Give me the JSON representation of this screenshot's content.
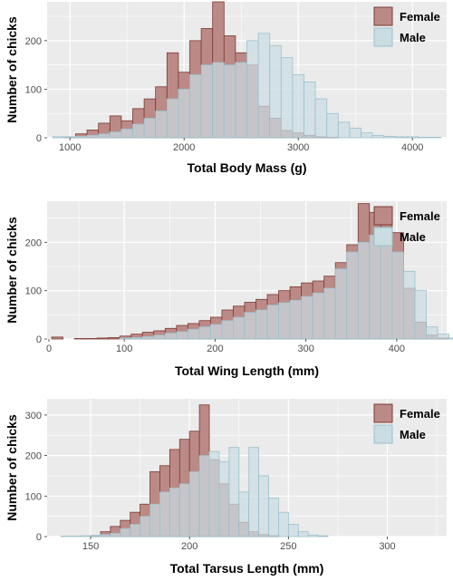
{
  "colors": {
    "panel_bg": "#ebebeb",
    "grid": "#ffffff",
    "female_fill": "#bc8a86",
    "female_stroke": "#7a3a33",
    "male_fill": "#c9dde3",
    "male_stroke": "#9cc0cc"
  },
  "chart_data": [
    {
      "type": "histogram",
      "xlabel": "Total Body Mass (g)",
      "ylabel": "Number of chicks",
      "xlim": [
        800,
        4300
      ],
      "ylim": [
        0,
        280
      ],
      "xticks": [
        1000,
        2000,
        3000,
        4000
      ],
      "yticks": [
        0,
        100,
        200
      ],
      "legend_position": "top-right",
      "bin_start": 850,
      "bin_width": 100,
      "series": [
        {
          "name": "Female",
          "values": [
            0,
            2,
            8,
            16,
            30,
            45,
            35,
            60,
            80,
            105,
            175,
            135,
            200,
            225,
            280,
            210,
            175,
            150,
            65,
            40,
            15,
            10,
            5,
            2,
            1,
            0,
            0,
            0,
            0,
            0,
            0,
            0,
            0,
            0
          ]
        },
        {
          "name": "Male",
          "values": [
            2,
            2,
            3,
            5,
            8,
            12,
            18,
            28,
            40,
            55,
            80,
            100,
            130,
            150,
            155,
            150,
            155,
            200,
            215,
            190,
            165,
            130,
            115,
            80,
            50,
            32,
            20,
            10,
            5,
            3,
            2,
            2,
            1,
            1
          ]
        }
      ]
    },
    {
      "type": "histogram",
      "xlabel": "Total Wing Length  (mm)",
      "ylabel": "Number of chicks",
      "xlim": [
        15,
        455
      ],
      "ylim": [
        0,
        285
      ],
      "xticks": [
        0,
        100,
        200,
        300,
        400
      ],
      "yticks": [
        0,
        100,
        200
      ],
      "legend_position": "top-right",
      "bin_start": 20,
      "bin_width": 12.5,
      "series": [
        {
          "name": "Female",
          "values": [
            4,
            0,
            1,
            1,
            2,
            3,
            6,
            10,
            14,
            17,
            22,
            28,
            32,
            38,
            45,
            60,
            68,
            76,
            82,
            92,
            100,
            108,
            116,
            120,
            130,
            158,
            195,
            280,
            262,
            250,
            220,
            105,
            35,
            8,
            2,
            0
          ]
        },
        {
          "name": "Male",
          "values": [
            0,
            0,
            0,
            0,
            0,
            0,
            2,
            3,
            5,
            8,
            12,
            15,
            20,
            25,
            30,
            38,
            45,
            55,
            60,
            70,
            75,
            80,
            88,
            95,
            105,
            145,
            180,
            200,
            215,
            225,
            180,
            140,
            100,
            25,
            10,
            2
          ]
        }
      ]
    },
    {
      "type": "histogram",
      "xlabel": "Total Tarsus Length  (mm)",
      "ylabel": "Number of chicks",
      "xlim": [
        128,
        330
      ],
      "ylim": [
        0,
        340
      ],
      "xticks": [
        150,
        200,
        250,
        300
      ],
      "yticks": [
        0,
        100,
        200,
        300
      ],
      "legend_position": "top-right",
      "bin_start": 135,
      "bin_width": 5,
      "series": [
        {
          "name": "Female",
          "values": [
            0,
            0,
            0,
            2,
            12,
            25,
            40,
            60,
            80,
            160,
            175,
            215,
            240,
            260,
            325,
            190,
            130,
            80,
            35,
            12,
            5,
            2,
            0,
            0,
            0,
            0,
            0,
            0,
            0,
            0,
            0,
            0,
            0,
            0,
            0,
            0,
            0,
            0
          ]
        },
        {
          "name": "Male",
          "values": [
            1,
            1,
            2,
            3,
            5,
            8,
            20,
            30,
            50,
            80,
            110,
            120,
            130,
            160,
            200,
            210,
            185,
            220,
            110,
            220,
            150,
            95,
            60,
            30,
            12,
            4,
            2,
            0,
            0,
            0,
            0,
            0,
            0,
            0,
            0,
            0,
            0,
            0
          ]
        }
      ]
    }
  ]
}
